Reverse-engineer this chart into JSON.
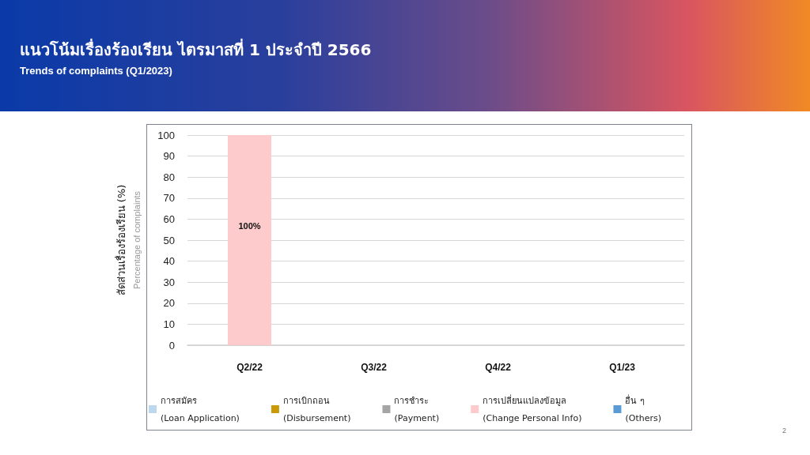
{
  "chart_data": {
    "type": "bar",
    "title": "แนวโน้มเรื่องร้องเรียน ไตรมาสที่ 1 ประจำปี 2566",
    "subtitle": "Trends of complaints (Q1/2023)",
    "ylabel": "สัดส่วนเรื่องร้องเรียน (%)\nPercentage of complaints",
    "categories": [
      "Q2/22",
      "Q3/22",
      "Q4/22",
      "Q1/23"
    ],
    "stacked": true,
    "series": [
      {
        "name": "การสมัคร\n(Loan Application)",
        "color": "#bdd7ee",
        "values": [
          null,
          null,
          null,
          null
        ]
      },
      {
        "name": "การเบิกถอน\n(Disbursement)",
        "color": "#c99a06",
        "values": [
          null,
          null,
          null,
          null
        ]
      },
      {
        "name": "การชำระ\n(Payment)",
        "color": "#a5a5a5",
        "values": [
          null,
          null,
          null,
          null
        ]
      },
      {
        "name": "การเปลี่ยนแปลงข้อมูล\n(Change Personal Info)",
        "color": "#fdcbcb",
        "values": [
          100,
          null,
          null,
          null
        ],
        "value_labels": [
          "100%",
          null,
          null,
          null
        ]
      },
      {
        "name": "อื่น ๆ\n(Others)",
        "color": "#5b9bd5",
        "values": [
          null,
          null,
          null,
          null
        ]
      }
    ],
    "ylim": [
      0,
      100
    ],
    "yticks": [
      0,
      10,
      20,
      30,
      40,
      50,
      60,
      70,
      80,
      90,
      100
    ],
    "grid": "y",
    "legend": "bottom",
    "annotations": [
      "2"
    ]
  }
}
